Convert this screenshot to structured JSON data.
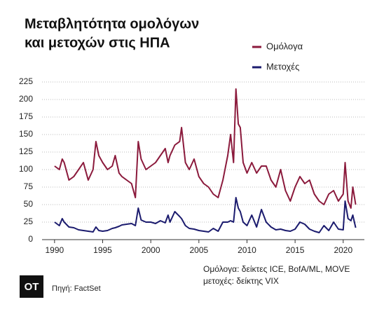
{
  "chart_data": {
    "type": "line",
    "title": [
      "Μεταβλητότητα ομολόγων",
      "και μετοχών στις ΗΠΑ"
    ],
    "x": [
      1990,
      1990.5,
      1990.8,
      1991,
      1991.5,
      1992,
      1992.5,
      1993,
      1993.5,
      1994,
      1994.3,
      1994.6,
      1995,
      1995.5,
      1996,
      1996.3,
      1996.7,
      1997,
      1997.5,
      1998,
      1998.4,
      1998.7,
      1999,
      1999.5,
      2000,
      2000.5,
      2001,
      2001.5,
      2001.8,
      2002,
      2002.5,
      2003,
      2003.2,
      2003.6,
      2004,
      2004.5,
      2005,
      2005.5,
      2006,
      2006.5,
      2007,
      2007.5,
      2008,
      2008.3,
      2008.6,
      2008.85,
      2009.1,
      2009.3,
      2009.6,
      2010,
      2010.5,
      2011,
      2011.5,
      2012,
      2012.5,
      2013,
      2013.5,
      2014,
      2014.5,
      2015,
      2015.5,
      2016,
      2016.5,
      2017,
      2017.5,
      2018,
      2018.5,
      2019,
      2019.5,
      2020,
      2020.2,
      2020.5,
      2020.8,
      2021,
      2021.3
    ],
    "series": [
      {
        "name": "Ομόλογα",
        "color": "#8b1a3c",
        "values": [
          105,
          100,
          115,
          110,
          85,
          90,
          100,
          110,
          85,
          100,
          140,
          120,
          110,
          100,
          105,
          120,
          95,
          90,
          85,
          80,
          60,
          140,
          115,
          100,
          105,
          110,
          120,
          130,
          110,
          120,
          135,
          140,
          160,
          110,
          100,
          115,
          90,
          80,
          75,
          65,
          60,
          85,
          120,
          150,
          110,
          215,
          165,
          160,
          110,
          95,
          110,
          95,
          105,
          105,
          85,
          75,
          100,
          70,
          55,
          75,
          90,
          80,
          85,
          65,
          55,
          50,
          65,
          70,
          55,
          65,
          110,
          55,
          45,
          75,
          50
        ]
      },
      {
        "name": "Μετοχές",
        "color": "#1b1b6e",
        "values": [
          25,
          20,
          30,
          25,
          18,
          17,
          14,
          13,
          12,
          11,
          18,
          13,
          12,
          13,
          16,
          17,
          19,
          21,
          22,
          23,
          20,
          45,
          28,
          25,
          25,
          23,
          27,
          24,
          35,
          25,
          40,
          33,
          30,
          20,
          16,
          15,
          13,
          12,
          11,
          16,
          12,
          25,
          25,
          27,
          25,
          60,
          45,
          40,
          25,
          20,
          35,
          18,
          43,
          25,
          18,
          14,
          15,
          13,
          12,
          15,
          25,
          22,
          15,
          12,
          10,
          20,
          13,
          25,
          15,
          14,
          55,
          30,
          27,
          35,
          17
        ]
      }
    ],
    "xlim": [
      1988.7,
      2022.2
    ],
    "xticks": [
      1990,
      1995,
      2000,
      2005,
      2010,
      2015,
      2020
    ],
    "ylim": [
      0,
      225
    ],
    "yticks": [
      0,
      25,
      50,
      75,
      100,
      125,
      150,
      175,
      200,
      225
    ],
    "grid": true,
    "notes": [
      "Ομόλογα: δείκτες ICE, BofA/ML, MOVE",
      "μετοχές: δείκτης VIX"
    ],
    "source": "Πηγή: FactSet",
    "logo": "OT"
  }
}
